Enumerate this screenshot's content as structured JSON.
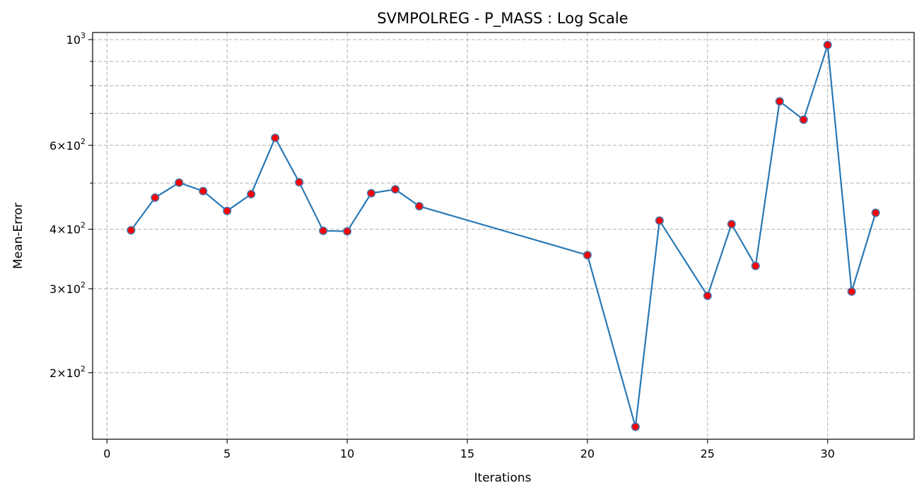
{
  "chart_data": {
    "type": "line",
    "title": "SVMPOLREG - P_MASS : Log Scale",
    "xlabel": "Iterations",
    "ylabel": "Mean-Error",
    "xlim": [
      -0.6,
      33.6
    ],
    "ylim": [
      145,
      1035
    ],
    "yscale": "log",
    "grid": true,
    "x_ticks": [
      0,
      5,
      10,
      15,
      20,
      25,
      30
    ],
    "y_major_ticks": [
      {
        "value": 200,
        "mantissa": "2",
        "base": "10",
        "exp": "2"
      },
      {
        "value": 300,
        "mantissa": "3",
        "base": "10",
        "exp": "2"
      },
      {
        "value": 400,
        "mantissa": "4",
        "base": "10",
        "exp": "2"
      },
      {
        "value": 600,
        "mantissa": "6",
        "base": "10",
        "exp": "2"
      },
      {
        "value": 1000,
        "mantissa": "",
        "base": "10",
        "exp": "3"
      }
    ],
    "y_minor_ticks": [
      500,
      700,
      800,
      900
    ],
    "line_color": "#2878b5",
    "marker_face": "#ff0000",
    "marker_edge": "#4a6fa5",
    "series": [
      {
        "x": [
          1,
          2,
          3,
          4,
          5,
          6,
          7,
          8,
          9,
          10,
          11,
          12,
          13,
          20,
          22,
          23,
          25,
          26,
          27,
          28,
          29,
          30,
          31,
          32
        ],
        "values": [
          398,
          466,
          501,
          481,
          437,
          474,
          622,
          502,
          397,
          396,
          476,
          485,
          447,
          353,
          154,
          417,
          290,
          410,
          335,
          742,
          679,
          974,
          296,
          433
        ]
      }
    ]
  }
}
